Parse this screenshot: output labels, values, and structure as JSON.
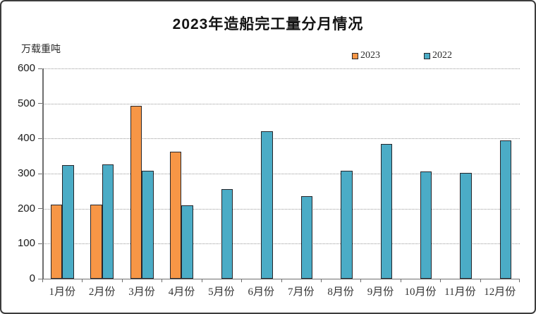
{
  "chart_data": {
    "type": "bar",
    "title": "2023年造船完工量分月情况",
    "ylabel": "万载重吨",
    "xlabel": "",
    "categories": [
      "1月份",
      "2月份",
      "3月份",
      "4月份",
      "5月份",
      "6月份",
      "7月份",
      "8月份",
      "9月份",
      "10月份",
      "11月份",
      "12月份"
    ],
    "series": [
      {
        "name": "2023",
        "color": "#F79646",
        "values": [
          211,
          211,
          493,
          362,
          null,
          null,
          null,
          null,
          null,
          null,
          null,
          null
        ]
      },
      {
        "name": "2022",
        "color": "#4BACC6",
        "values": [
          325,
          327,
          308,
          210,
          255,
          420,
          235,
          308,
          385,
          307,
          303,
          395
        ]
      }
    ],
    "ylim": [
      0,
      600
    ],
    "ytick_interval": 100,
    "grid": true,
    "legend_position": "top-right"
  },
  "colors": {
    "bar_border": "#26262b",
    "axis": "#6e6e6e",
    "gridline": "#9a9a9a",
    "frame_border": "#3c3c3c",
    "background": "#ffffff"
  }
}
